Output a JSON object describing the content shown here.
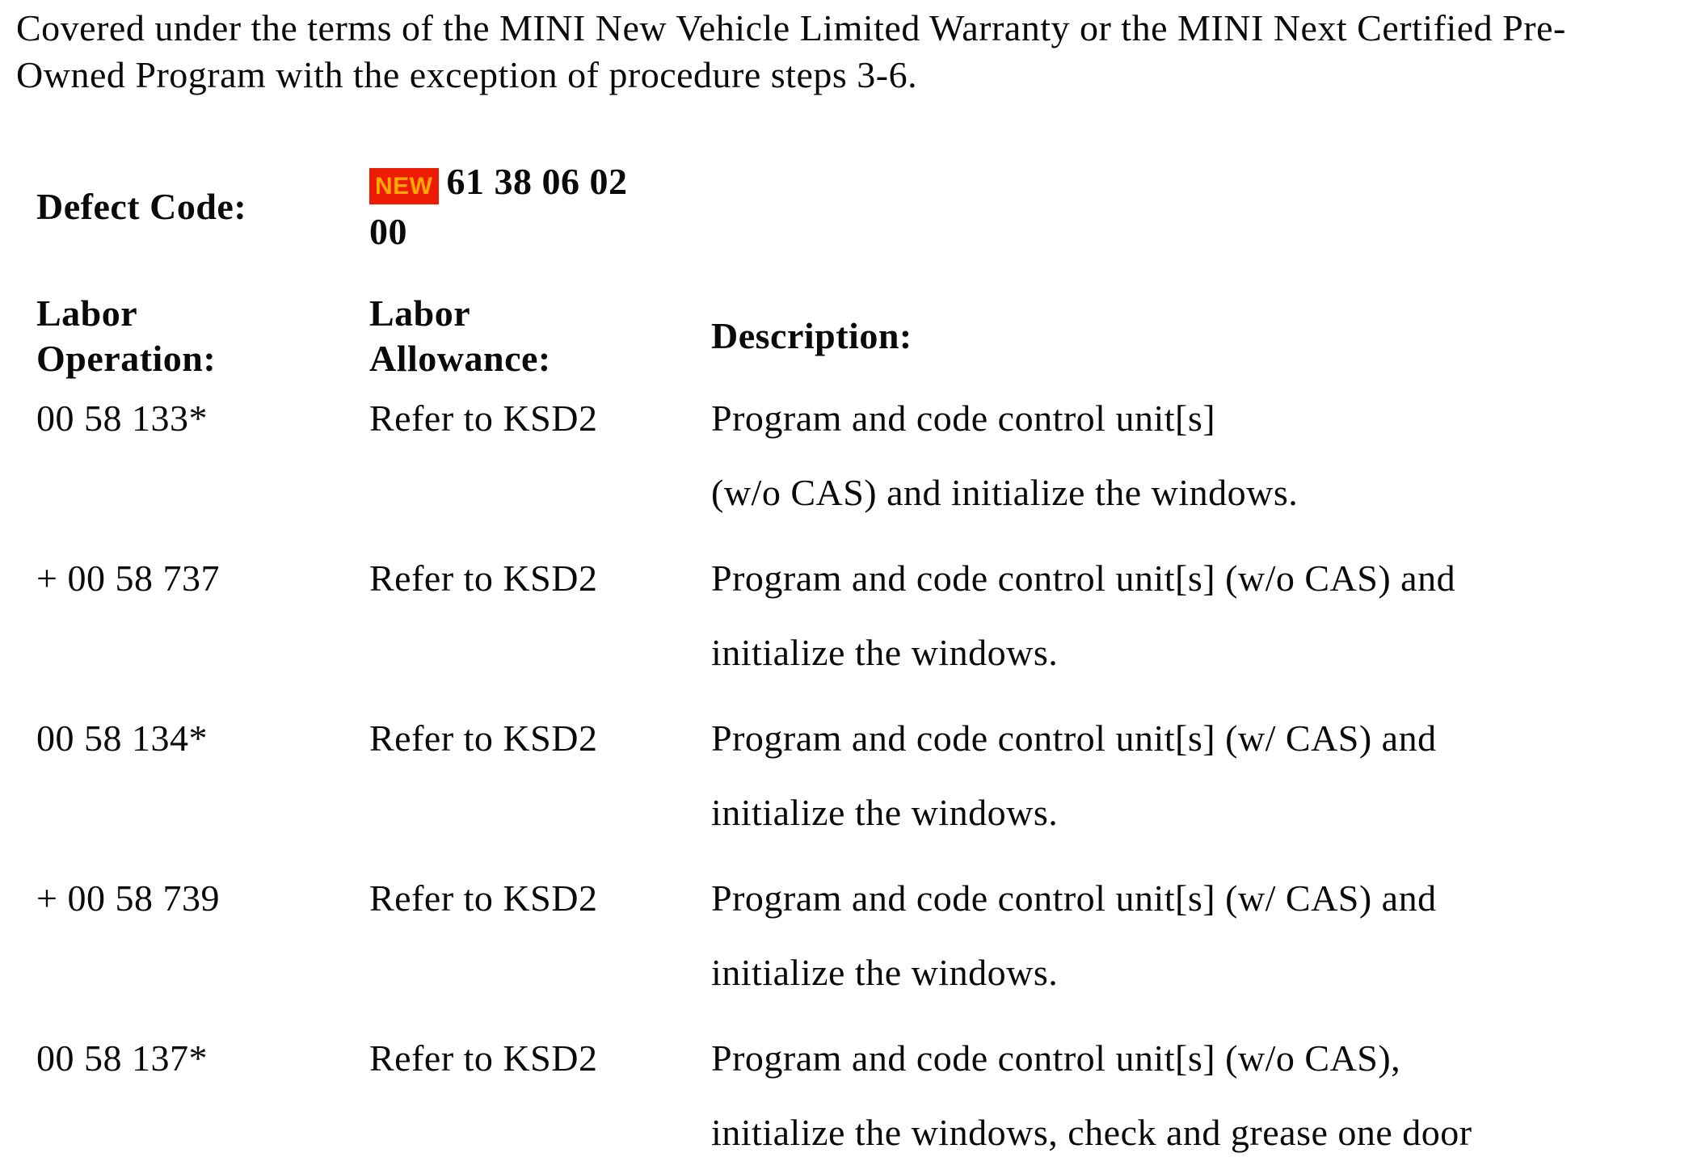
{
  "document": {
    "intro_paragraph": "Covered under the terms of the MINI New Vehicle Limited Warranty or the MINI Next Certified Pre-Owned Program with the exception of procedure steps 3-6.",
    "defect_code": {
      "label": "Defect Code:",
      "badge": "NEW",
      "code": "61 38 06 02 00"
    },
    "labor_table": {
      "headers": {
        "operation": "Labor Operation:",
        "allowance": "Labor Allowance:",
        "description": "Description:"
      },
      "rows": [
        {
          "operation": "00 58 133*",
          "allowance": "Refer to KSD2",
          "description_lines": [
            "Program and code control unit[s]",
            "(w/o CAS) and initialize the windows."
          ]
        },
        {
          "operation": "+ 00 58 737",
          "allowance": "Refer to KSD2",
          "description_lines": [
            "Program and code control unit[s] (w/o CAS) and",
            "initialize the windows."
          ]
        },
        {
          "operation": "00 58 134*",
          "allowance": "Refer to KSD2",
          "description_lines": [
            "Program and code control unit[s] (w/ CAS) and",
            "initialize the windows."
          ]
        },
        {
          "operation": "+ 00 58 739",
          "allowance": "Refer to KSD2",
          "description_lines": [
            "Program and code control unit[s] (w/ CAS) and",
            "initialize the windows."
          ]
        },
        {
          "operation": "00 58 137*",
          "allowance": "Refer to KSD2",
          "description_lines": [
            "Program and code control unit[s] (w/o CAS),",
            "initialize the windows, check and grease one door"
          ]
        }
      ]
    },
    "colors": {
      "badge_background": "#ee1c04",
      "badge_text": "#ffa800",
      "body_text": "#0a0a0a",
      "page_background": "#ffffff"
    }
  }
}
